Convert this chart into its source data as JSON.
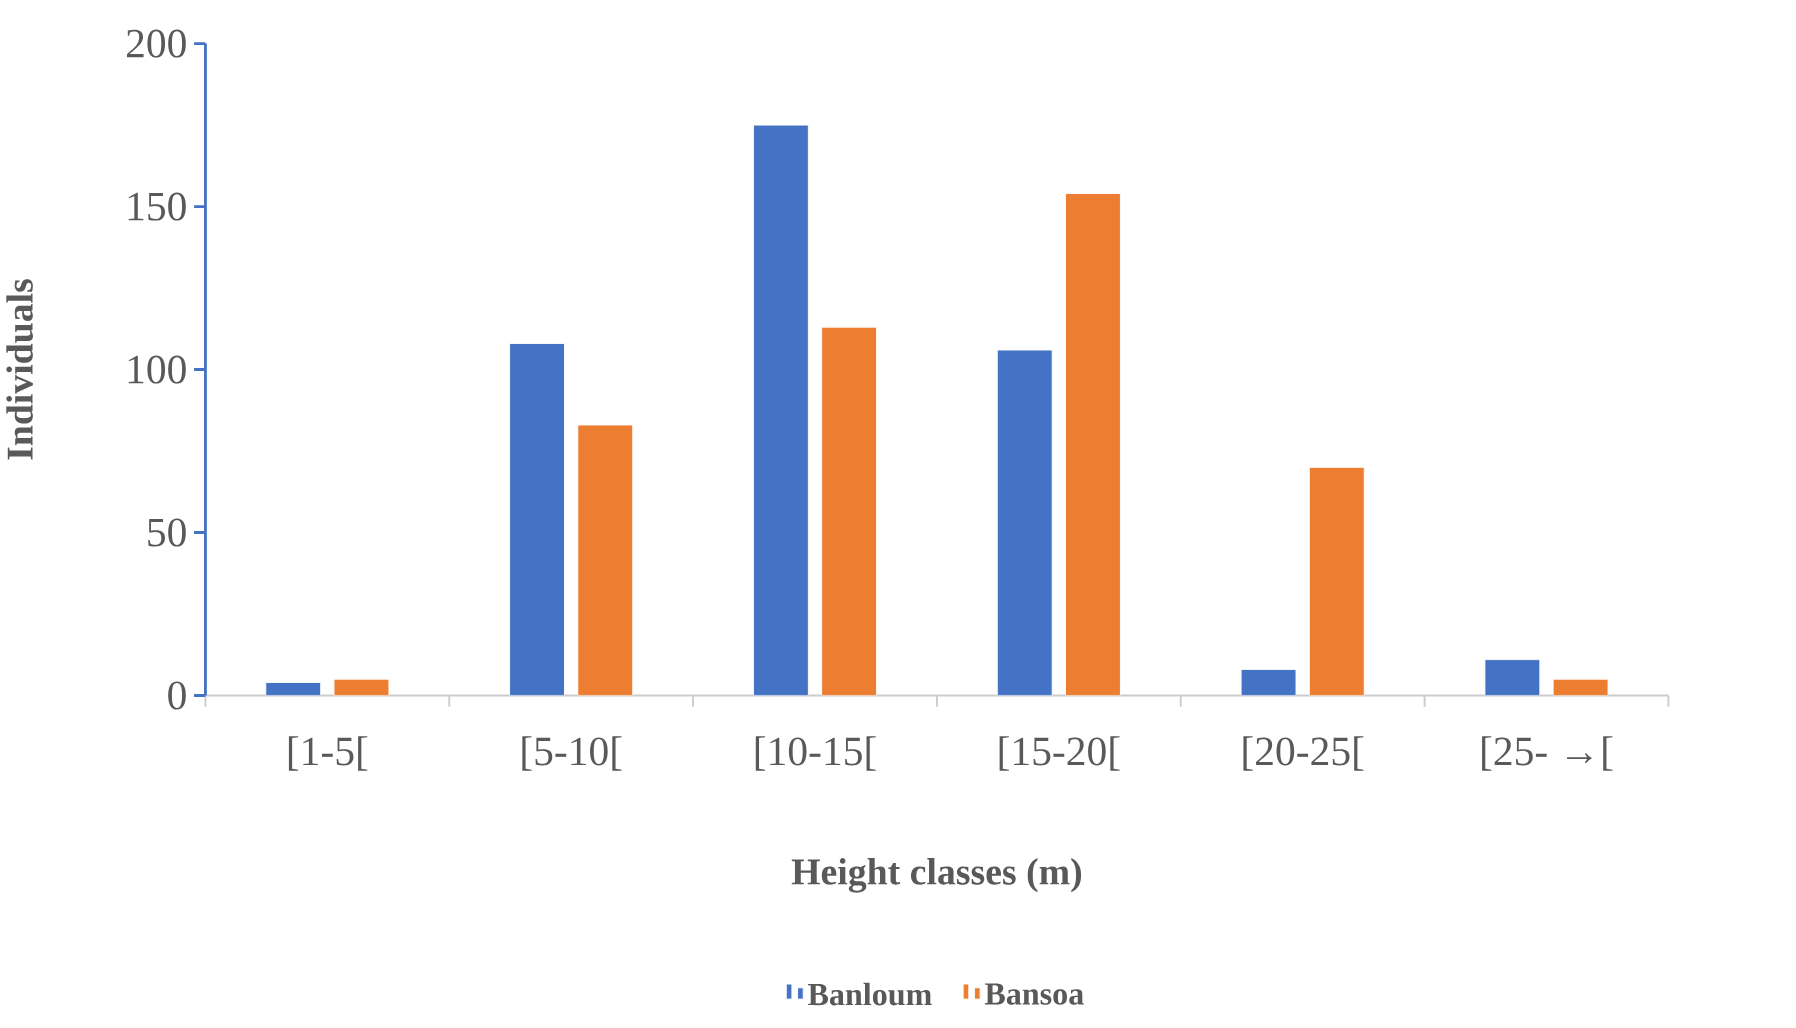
{
  "chart_data": {
    "type": "bar",
    "xlabel": "Height classes (m)",
    "ylabel": "Individuals",
    "categories": [
      "[1-5[",
      "[5-10[",
      "[10-15[",
      "[15-20[",
      "[20-25[",
      "[25- →["
    ],
    "series": [
      {
        "name": "Banloum",
        "color": "#4472c4",
        "values": [
          4,
          108,
          175,
          106,
          8,
          11
        ]
      },
      {
        "name": "Bansoa",
        "color": "#ed7d31",
        "values": [
          5,
          83,
          113,
          154,
          70,
          5
        ]
      }
    ],
    "ylim": [
      0,
      200
    ],
    "yticks": [
      0,
      50,
      100,
      150,
      200
    ],
    "legend": "bottom"
  }
}
